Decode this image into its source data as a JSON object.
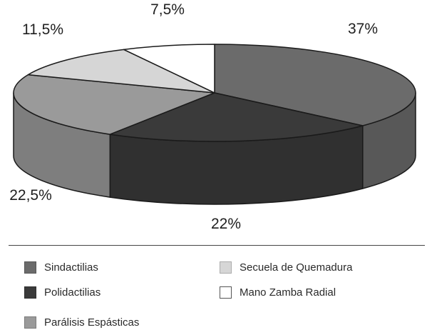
{
  "chart_data": {
    "type": "pie",
    "style": "3d",
    "slices": [
      {
        "name": "Sindactilias",
        "value": 37,
        "label": "37%",
        "color": "#6b6b6b"
      },
      {
        "name": "Polidactilias",
        "value": 22,
        "label": "22%",
        "color": "#3a3a3a"
      },
      {
        "name": "Parálisis Espásticas",
        "value": 22.5,
        "label": "22,5%",
        "color": "#9a9a9a"
      },
      {
        "name": "Secuela de Quemadura",
        "value": 11.5,
        "label": "11,5%",
        "color": "#d6d6d6"
      },
      {
        "name": "Mano Zamba Radial",
        "value": 7.5,
        "label": "7,5%",
        "color": "#ffffff"
      }
    ],
    "legend_placement": "bottom"
  }
}
